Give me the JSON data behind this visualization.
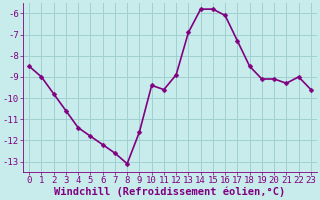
{
  "x": [
    0,
    1,
    2,
    3,
    4,
    5,
    6,
    7,
    8,
    9,
    10,
    11,
    12,
    13,
    14,
    15,
    16,
    17,
    18,
    19,
    20,
    21,
    22,
    23
  ],
  "y": [
    -8.5,
    -9.0,
    -9.8,
    -10.6,
    -11.4,
    -11.8,
    -12.2,
    -12.6,
    -13.1,
    -11.6,
    -9.4,
    -9.6,
    -8.9,
    -6.9,
    -5.8,
    -5.8,
    -6.1,
    -7.3,
    -8.5,
    -9.1,
    -9.1,
    -9.3,
    -9.0,
    -9.6
  ],
  "line_color": "#800080",
  "marker": "D",
  "marker_size": 2.5,
  "bg_color": "#c8ecec",
  "grid_color": "#a0d0d0",
  "xlabel": "Windchill (Refroidissement éolien,°C)",
  "xlabel_color": "#800080",
  "tick_color": "#800080",
  "ylim": [
    -13.5,
    -5.5
  ],
  "yticks": [
    -13,
    -12,
    -11,
    -10,
    -9,
    -8,
    -7,
    -6
  ],
  "xlim": [
    -0.5,
    23.5
  ],
  "xticks": [
    0,
    1,
    2,
    3,
    4,
    5,
    6,
    7,
    8,
    9,
    10,
    11,
    12,
    13,
    14,
    15,
    16,
    17,
    18,
    19,
    20,
    21,
    22,
    23
  ],
  "line_width": 1.2,
  "font_size": 6.5,
  "xlabel_font_size": 7.5
}
